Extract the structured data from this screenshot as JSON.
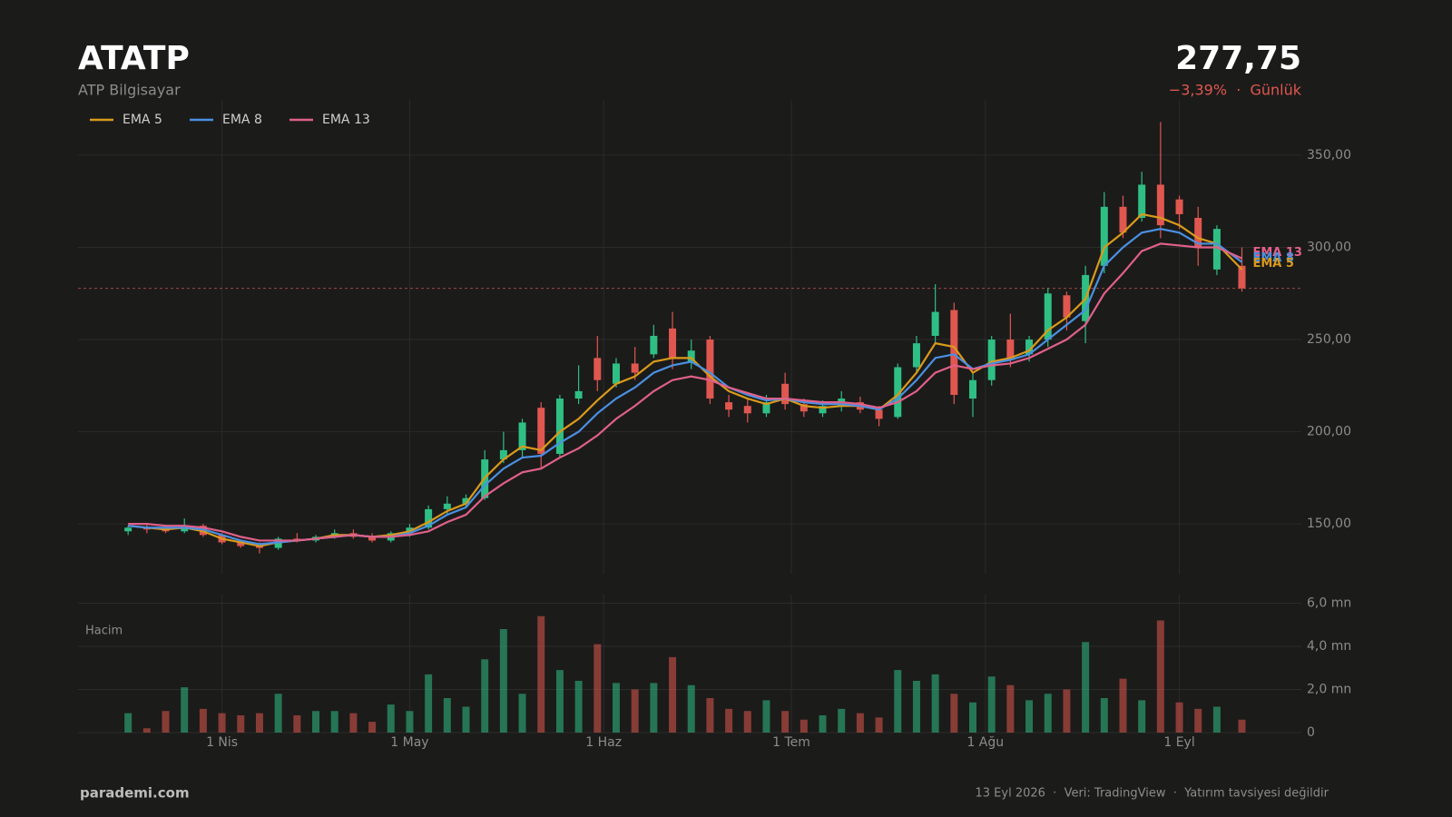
{
  "header": {
    "symbol": "ATATP",
    "name": "ATP Bilgisayar",
    "price": "277,75",
    "change": "−3,39%  ·  Günlük"
  },
  "chart_data": {
    "type": "candlestick",
    "x": [
      76,
      79,
      82,
      85,
      88,
      91,
      94,
      97,
      100,
      103,
      106,
      109,
      112,
      115,
      118,
      121,
      124,
      127,
      130,
      133,
      136,
      139,
      142,
      145,
      148,
      151,
      154,
      157,
      160,
      163,
      166,
      169,
      172,
      175,
      178,
      181,
      184,
      187,
      190,
      193,
      196,
      199,
      202,
      205,
      208,
      211,
      214,
      217,
      220,
      223,
      226,
      229,
      232,
      235,
      238,
      241,
      244,
      247,
      250,
      254
    ],
    "open": [
      146,
      148,
      147,
      146,
      149,
      144,
      140,
      138,
      137,
      142,
      141,
      143,
      145,
      143,
      141,
      145,
      148,
      158,
      161,
      164,
      185,
      190,
      213,
      188,
      218,
      240,
      226,
      237,
      242,
      256,
      238,
      250,
      216,
      214,
      210,
      226,
      215,
      210,
      214,
      216,
      212,
      208,
      235,
      252,
      266,
      218,
      228,
      250,
      242,
      250,
      274,
      260,
      290,
      322,
      316,
      334,
      326,
      316,
      288,
      290
    ],
    "high": [
      149,
      150,
      149,
      153,
      150,
      145,
      141,
      140,
      143,
      145,
      144,
      147,
      147,
      145,
      146,
      150,
      160,
      165,
      166,
      190,
      200,
      207,
      216,
      220,
      236,
      252,
      240,
      246,
      258,
      265,
      250,
      252,
      220,
      218,
      220,
      232,
      218,
      217,
      222,
      219,
      214,
      237,
      252,
      280,
      270,
      232,
      252,
      264,
      252,
      278,
      276,
      290,
      330,
      328,
      341,
      368,
      328,
      322,
      312,
      300
    ],
    "low": [
      144,
      145,
      145,
      145,
      143,
      139,
      137,
      134,
      136,
      140,
      140,
      142,
      142,
      140,
      140,
      143,
      147,
      155,
      159,
      163,
      183,
      186,
      180,
      186,
      215,
      222,
      224,
      228,
      240,
      234,
      234,
      215,
      208,
      205,
      208,
      212,
      208,
      208,
      211,
      210,
      203,
      207,
      232,
      248,
      215,
      208,
      225,
      235,
      238,
      246,
      255,
      248,
      286,
      305,
      314,
      305,
      310,
      290,
      285,
      276
    ],
    "close": [
      148,
      147,
      146,
      149,
      144,
      140,
      138,
      137,
      142,
      141,
      143,
      145,
      143,
      141,
      145,
      148,
      158,
      161,
      164,
      185,
      190,
      205,
      188,
      218,
      222,
      228,
      237,
      232,
      252,
      240,
      244,
      218,
      212,
      210,
      216,
      215,
      211,
      214,
      218,
      212,
      207,
      235,
      248,
      265,
      220,
      228,
      250,
      240,
      250,
      275,
      262,
      285,
      322,
      308,
      334,
      312,
      318,
      300,
      310,
      277.75
    ],
    "up_color": "#2fbf85",
    "down_color": "#e0574f",
    "series": [
      {
        "name": "EMA 5",
        "color": "#d99a1b",
        "values": [
          149,
          148,
          147,
          148,
          146,
          142,
          140,
          138,
          140,
          141,
          142,
          144,
          144,
          143,
          144,
          146,
          151,
          157,
          161,
          175,
          185,
          192,
          190,
          200,
          207,
          217,
          226,
          230,
          238,
          240,
          240,
          230,
          222,
          218,
          215,
          218,
          214,
          213,
          214,
          214,
          212,
          220,
          232,
          248,
          246,
          232,
          238,
          240,
          244,
          255,
          262,
          272,
          300,
          308,
          318,
          316,
          312,
          305,
          302,
          288
        ]
      },
      {
        "name": "EMA 8",
        "color": "#4a90e2",
        "values": [
          149,
          148,
          148,
          148,
          147,
          144,
          141,
          139,
          140,
          141,
          142,
          143,
          144,
          143,
          143,
          145,
          149,
          155,
          159,
          171,
          180,
          186,
          187,
          194,
          200,
          210,
          218,
          224,
          232,
          236,
          238,
          232,
          224,
          220,
          217,
          218,
          216,
          215,
          215,
          214,
          212,
          218,
          228,
          240,
          242,
          234,
          237,
          239,
          242,
          250,
          258,
          266,
          290,
          300,
          308,
          310,
          308,
          302,
          302,
          292
        ]
      },
      {
        "name": "EMA 13",
        "color": "#e0608a",
        "values": [
          150,
          150,
          149,
          149,
          148,
          146,
          143,
          141,
          141,
          141,
          142,
          143,
          144,
          143,
          143,
          144,
          146,
          151,
          155,
          165,
          172,
          178,
          180,
          186,
          191,
          198,
          207,
          214,
          222,
          228,
          230,
          228,
          224,
          221,
          218,
          218,
          217,
          216,
          216,
          215,
          213,
          216,
          222,
          232,
          236,
          234,
          236,
          237,
          240,
          245,
          250,
          258,
          275,
          286,
          298,
          302,
          301,
          300,
          300,
          294
        ]
      }
    ],
    "last_price": 277.75,
    "legend": "upper left",
    "grid": true,
    "xlim": [
      68,
      263.5
    ],
    "xticks": [
      {
        "value": 91,
        "label": "1 Nis"
      },
      {
        "value": 121,
        "label": "1 May"
      },
      {
        "value": 152,
        "label": "1 Haz"
      },
      {
        "value": 182,
        "label": "1 Tem"
      },
      {
        "value": 213,
        "label": "1 Ağu"
      },
      {
        "value": 244,
        "label": "1 Eyl"
      }
    ],
    "ylim": [
      123,
      380
    ],
    "yticks": [
      {
        "value": 150,
        "label": "150,00"
      },
      {
        "value": 200,
        "label": "200,00"
      },
      {
        "value": 250,
        "label": "250,00"
      },
      {
        "value": 300,
        "label": "300,00"
      },
      {
        "value": 350,
        "label": "350,00"
      }
    ],
    "volume_title": "Hacim",
    "volume": [
      0.9,
      0.2,
      1.0,
      2.1,
      1.1,
      0.9,
      0.8,
      0.9,
      1.8,
      0.8,
      1.0,
      1.0,
      0.9,
      0.5,
      1.3,
      1.0,
      2.7,
      1.6,
      1.2,
      3.4,
      4.8,
      1.8,
      5.4,
      2.9,
      2.4,
      4.1,
      2.3,
      2.0,
      2.3,
      3.5,
      2.2,
      1.6,
      1.1,
      1.0,
      1.5,
      1.0,
      0.6,
      0.8,
      1.1,
      0.9,
      0.7,
      2.9,
      2.4,
      2.7,
      1.8,
      1.4,
      2.6,
      2.2,
      1.5,
      1.8,
      2.0,
      4.2,
      1.6,
      2.5,
      1.5,
      5.2,
      1.4,
      1.1,
      1.2,
      0.6
    ],
    "vlim": [
      0,
      6.4
    ],
    "vticks": [
      0,
      {
        "value": 2,
        "label": "2,0 mn"
      },
      {
        "value": 4,
        "label": "4,0 mn"
      },
      {
        "value": 6,
        "label": "6,0 mn"
      }
    ]
  },
  "footer": {
    "site": "parademi.com",
    "note": "13 Eyl 2026  ·  Veri: TradingView  ·  Yatırım tavsiyesi değildir"
  }
}
